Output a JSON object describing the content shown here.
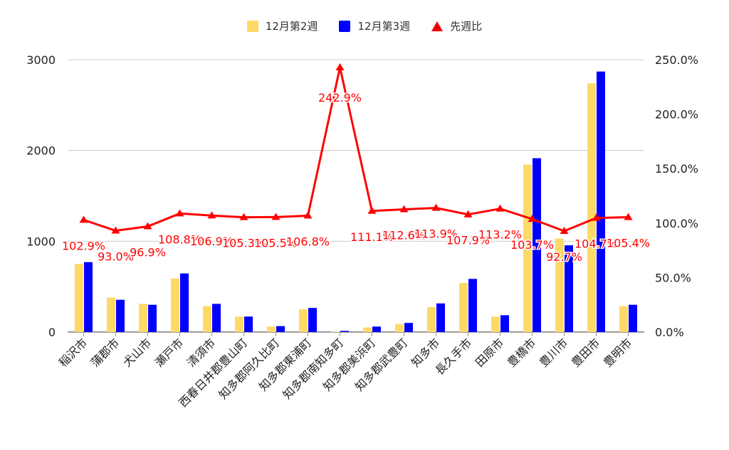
{
  "colors": {
    "week2": "#ffd966",
    "week3": "#0000ff",
    "ratio": "#ff0000",
    "grid": "#cccccc",
    "axis_text": "#222222"
  },
  "legend": {
    "week2_label": "12月第2週",
    "week3_label": "12月第3週",
    "ratio_label": "先週比"
  },
  "chart_data": {
    "type": "bar",
    "categories": [
      "稲沢市",
      "蒲郡市",
      "犬山市",
      "瀬戸市",
      "清須市",
      "西春日井郡豊山町",
      "知多郡阿久比町",
      "知多郡東浦町",
      "知多郡南知多町",
      "知多郡美浜町",
      "知多郡武豊町",
      "知多市",
      "長久手市",
      "田原市",
      "豊橋市",
      "豊川市",
      "豊田市",
      "豊明市"
    ],
    "series": [
      {
        "name": "12月第2週",
        "type": "bar",
        "axis": "left",
        "values": [
          750,
          380,
          310,
          590,
          285,
          170,
          60,
          250,
          5,
          50,
          90,
          275,
          540,
          170,
          1845,
          1030,
          2740,
          285
        ]
      },
      {
        "name": "12月第3週",
        "type": "bar",
        "axis": "left",
        "values": [
          770,
          355,
          300,
          645,
          310,
          170,
          65,
          265,
          12,
          60,
          100,
          315,
          585,
          185,
          1915,
          955,
          2870,
          300
        ]
      },
      {
        "name": "先週比",
        "type": "line",
        "axis": "right",
        "values": [
          102.9,
          93.0,
          96.9,
          108.8,
          106.9,
          105.3,
          105.5,
          106.8,
          242.9,
          111.1,
          112.6,
          113.9,
          107.9,
          113.2,
          103.7,
          92.7,
          104.7,
          105.4
        ]
      }
    ],
    "data_labels": [
      "102.9%",
      "93.0%",
      "96.9%",
      "108.8%",
      "106.9%",
      "105.3%",
      "105.5%",
      "106.8%",
      "242.9%",
      "111.1%",
      "112.6%",
      "113.9%",
      "107.9%",
      "113.2%",
      "103.7%",
      "92.7%",
      "104.7%",
      "105.4%"
    ],
    "y_left": {
      "ylim": [
        0,
        3000
      ],
      "ticks": [
        "0",
        "1000",
        "2000",
        "3000"
      ]
    },
    "y_right": {
      "ylim": [
        0,
        250
      ],
      "ticks": [
        "0.0%",
        "50.0%",
        "100.0%",
        "150.0%",
        "200.0%",
        "250.0%"
      ]
    },
    "grid": true,
    "legend_position": "top"
  }
}
